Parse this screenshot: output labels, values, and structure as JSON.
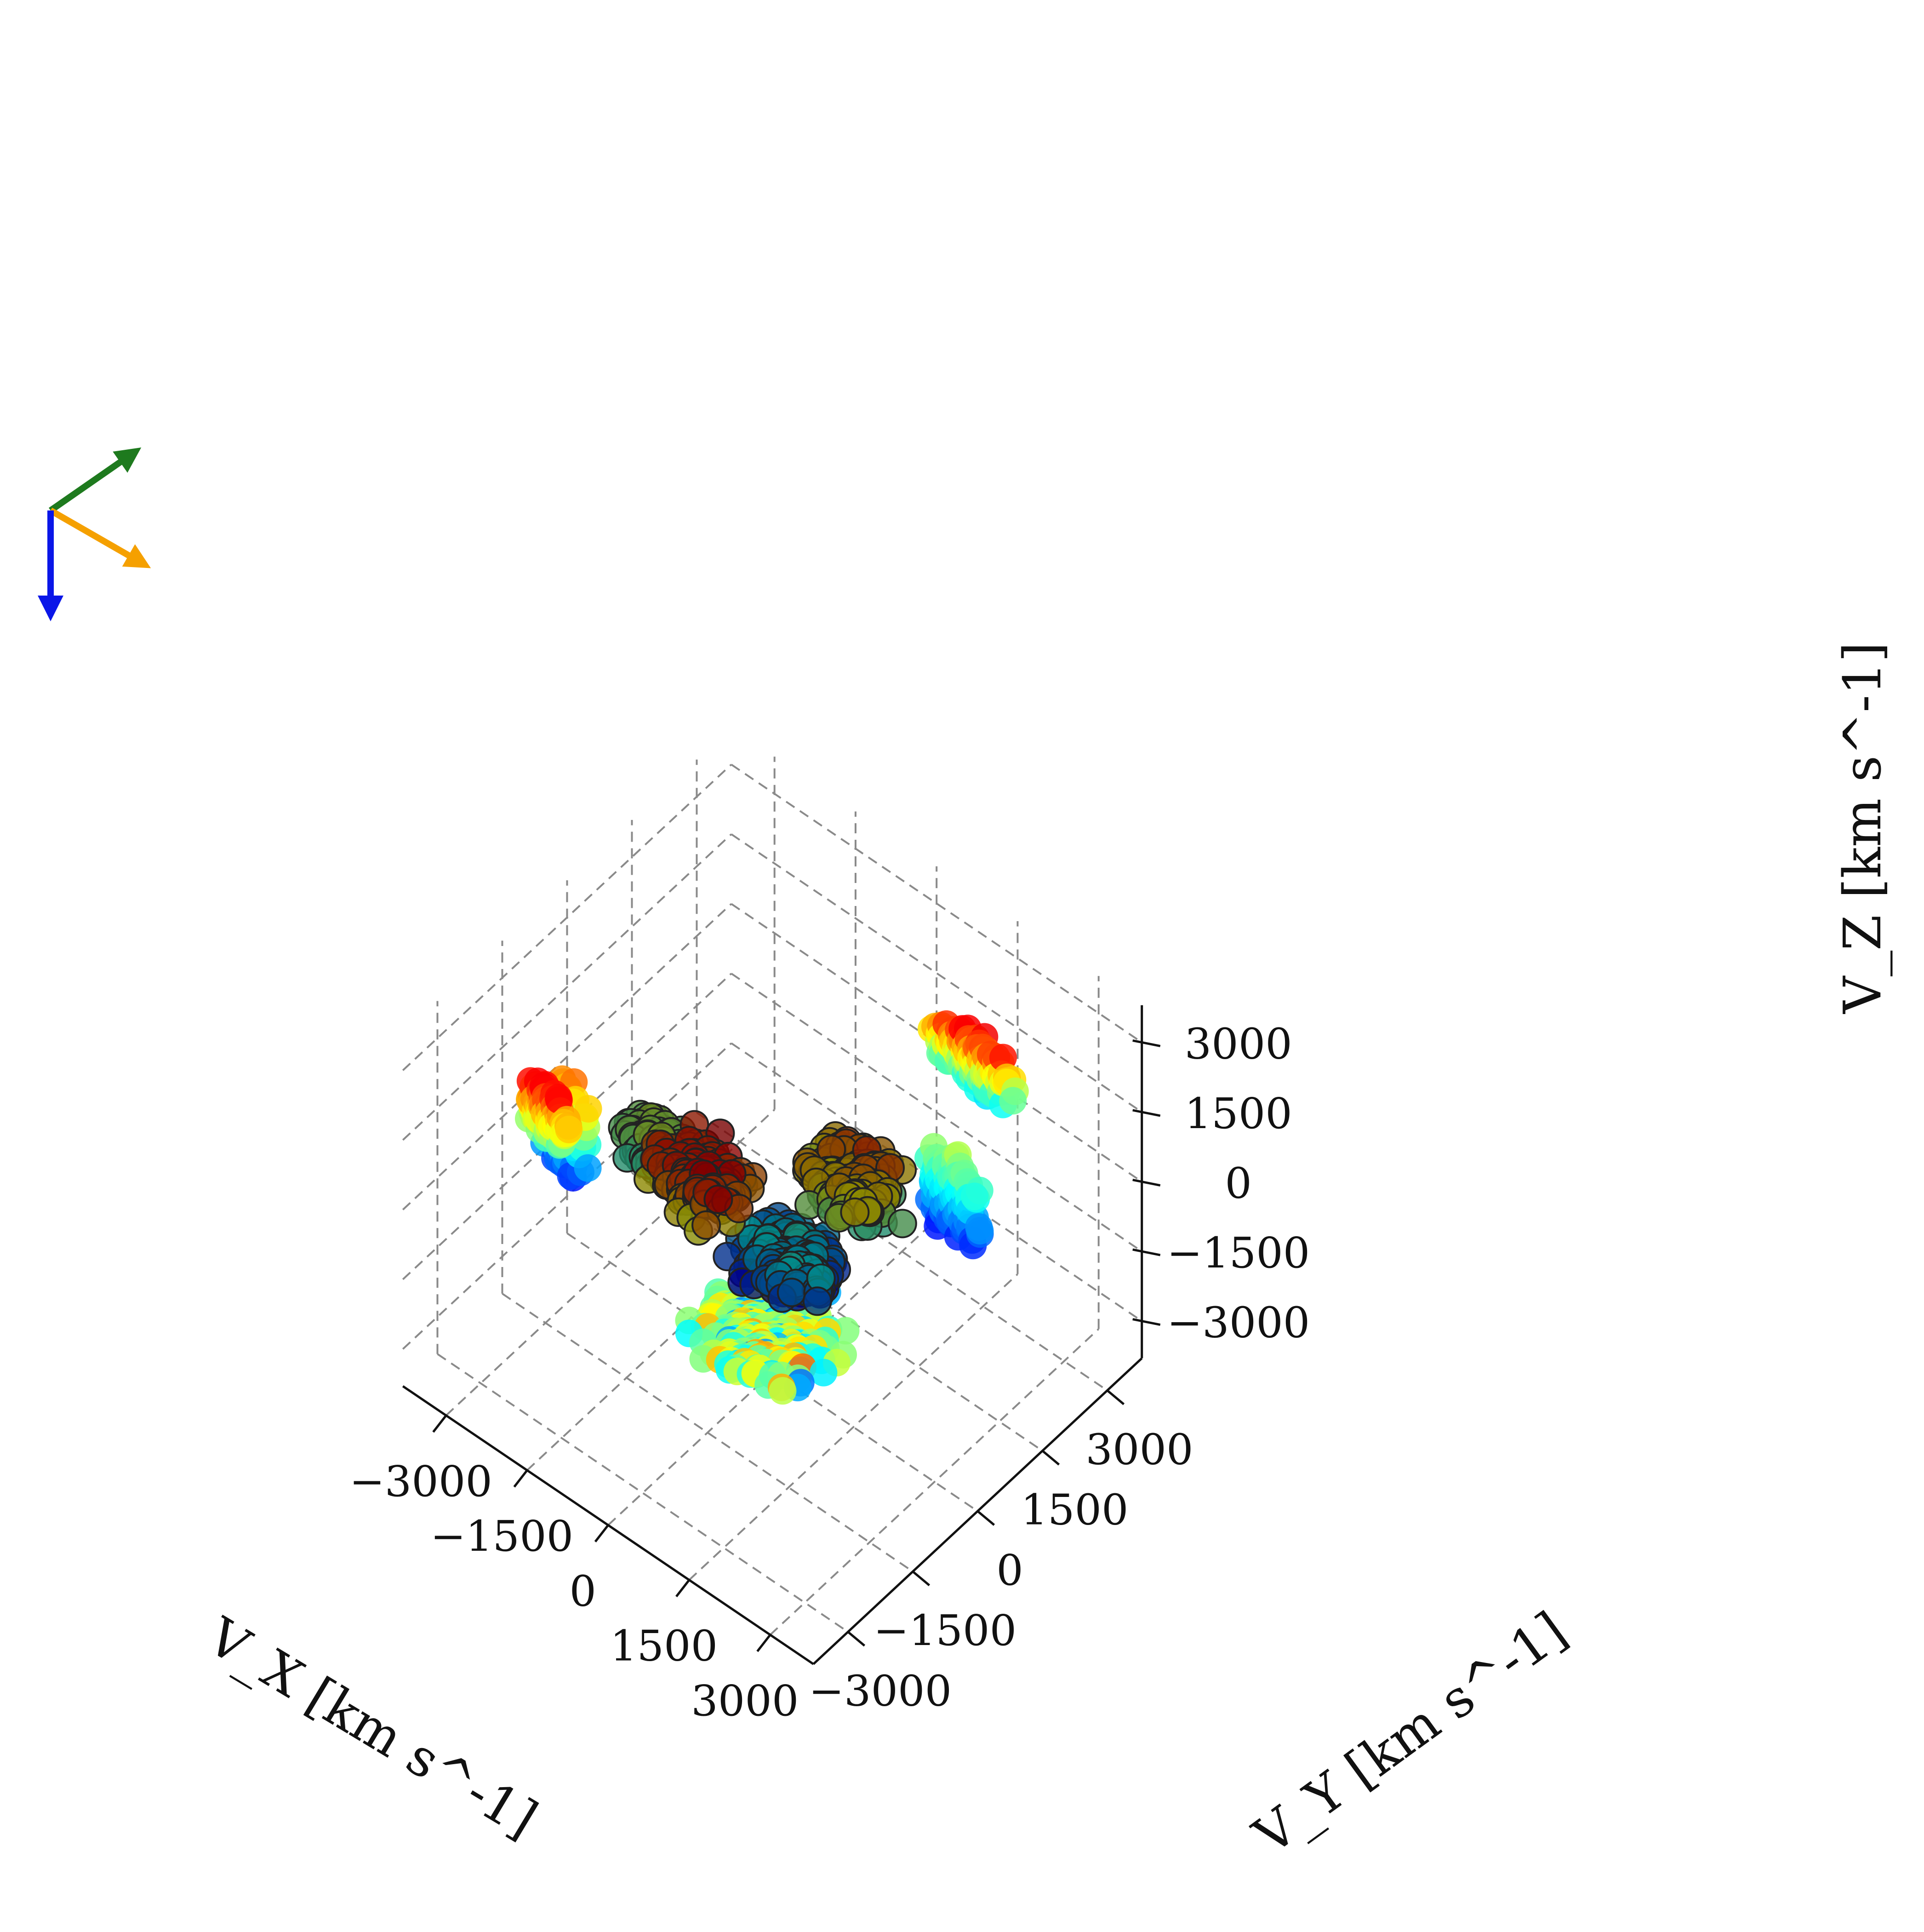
{
  "chart_data": {
    "type": "scatter",
    "projection": "3d",
    "title": "",
    "grid": true,
    "xlabel": "V_X [km s^-1]",
    "ylabel": "V_Y [km s^-1]",
    "zlabel": "V_Z [km s^-1]",
    "xlim": [
      -3800,
      3800
    ],
    "ylim": [
      -3800,
      3800
    ],
    "zlim": [
      -3800,
      3800
    ],
    "ticks": {
      "x": [
        "−3000",
        "−1500",
        "0",
        "1500",
        "3000"
      ],
      "y": [
        "−3000",
        "−1500",
        "0",
        "1500",
        "3000"
      ],
      "z": [
        "−3000",
        "−1500",
        "0",
        "1500",
        "3000"
      ]
    },
    "tick_values": [
      -3000,
      -1500,
      0,
      1500,
      3000
    ],
    "colormap": "jet",
    "clusters": [
      {
        "name": "",
        "center": [
          -2600,
          -1500,
          700
        ],
        "spread": [
          500,
          80,
          1200
        ],
        "color_range": [
          0.1,
          0.8
        ],
        "count": 260,
        "edge": false
      },
      {
        "name": "",
        "center": [
          -2400,
          -2200,
          1800
        ],
        "spread": [
          500,
          80,
          700
        ],
        "color_range": [
          0.4,
          0.95
        ],
        "count": 200,
        "edge": false
      },
      {
        "name": "",
        "center": [
          1800,
          2400,
          2300
        ],
        "spread": [
          900,
          80,
          700
        ],
        "color_range": [
          0.3,
          0.95
        ],
        "count": 260,
        "edge": false
      },
      {
        "name": "",
        "center": [
          2400,
          1200,
          900
        ],
        "spread": [
          600,
          80,
          1100
        ],
        "color_range": [
          0.1,
          0.6
        ],
        "count": 220,
        "edge": false
      },
      {
        "name": "",
        "center": [
          -300,
          300,
          -3400
        ],
        "spread": [
          1300,
          1300,
          60
        ],
        "color_range": [
          0.15,
          0.85
        ],
        "count": 320,
        "edge": false
      },
      {
        "name": "",
        "center": [
          -600,
          -900,
          700
        ],
        "spread": [
          900,
          700,
          600
        ],
        "color_range": [
          0.55,
          0.95
        ],
        "count": 220,
        "edge": true
      },
      {
        "name": "",
        "center": [
          900,
          700,
          400
        ],
        "spread": [
          900,
          700,
          700
        ],
        "color_range": [
          0.35,
          0.85
        ],
        "count": 240,
        "edge": true
      },
      {
        "name": "",
        "center": [
          200,
          200,
          -1400
        ],
        "spread": [
          900,
          800,
          500
        ],
        "color_range": [
          0.05,
          0.45
        ],
        "count": 260,
        "edge": true
      },
      {
        "name": "",
        "center": [
          -2000,
          -200,
          -300
        ],
        "spread": [
          700,
          500,
          500
        ],
        "color_range": [
          0.35,
          0.6
        ],
        "count": 160,
        "edge": true
      }
    ],
    "orientation_arrows": [
      {
        "color": "#1e7a1e"
      },
      {
        "color": "#f5a000"
      },
      {
        "color": "#0a16e8"
      }
    ]
  }
}
